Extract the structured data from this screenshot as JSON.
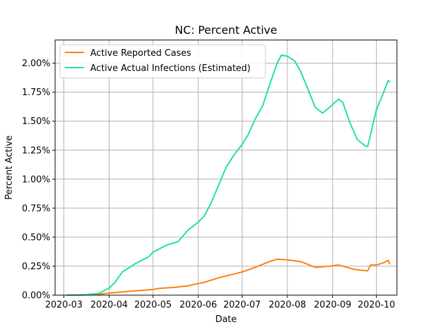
{
  "chart_data": {
    "type": "line",
    "title": "NC: Percent Active",
    "xlabel": "Date",
    "ylabel": "Percent Active",
    "xlim": [
      "2020-02-24",
      "2020-10-15"
    ],
    "ylim": [
      0,
      2.2
    ],
    "grid": true,
    "legend_position": "top-left",
    "x_ticks": [
      "2020-03-01",
      "2020-04-01",
      "2020-05-01",
      "2020-06-01",
      "2020-07-01",
      "2020-08-01",
      "2020-09-01",
      "2020-10-01"
    ],
    "x_tick_labels": [
      "2020-03",
      "2020-04",
      "2020-05",
      "2020-06",
      "2020-07",
      "2020-08",
      "2020-09",
      "2020-10"
    ],
    "y_ticks": [
      0,
      0.25,
      0.5,
      0.75,
      1.0,
      1.25,
      1.5,
      1.75,
      2.0
    ],
    "y_tick_labels": [
      "0.00%",
      "0.25%",
      "0.50%",
      "0.75%",
      "1.00%",
      "1.25%",
      "1.50%",
      "1.75%",
      "2.00%"
    ],
    "series": [
      {
        "name": "Active Reported Cases",
        "color": "#ff7f0e",
        "points": [
          [
            "2020-03-03",
            0.0
          ],
          [
            "2020-03-15",
            0.002
          ],
          [
            "2020-03-25",
            0.008
          ],
          [
            "2020-04-01",
            0.018
          ],
          [
            "2020-04-10",
            0.028
          ],
          [
            "2020-04-20",
            0.038
          ],
          [
            "2020-05-01",
            0.048
          ],
          [
            "2020-05-05",
            0.058
          ],
          [
            "2020-05-15",
            0.066
          ],
          [
            "2020-05-25",
            0.08
          ],
          [
            "2020-06-01",
            0.1
          ],
          [
            "2020-06-05",
            0.11
          ],
          [
            "2020-06-15",
            0.15
          ],
          [
            "2020-06-25",
            0.18
          ],
          [
            "2020-07-01",
            0.2
          ],
          [
            "2020-07-10",
            0.24
          ],
          [
            "2020-07-20",
            0.29
          ],
          [
            "2020-07-25",
            0.31
          ],
          [
            "2020-08-01",
            0.305
          ],
          [
            "2020-08-10",
            0.29
          ],
          [
            "2020-08-20",
            0.24
          ],
          [
            "2020-08-30",
            0.25
          ],
          [
            "2020-09-05",
            0.26
          ],
          [
            "2020-09-15",
            0.225
          ],
          [
            "2020-09-20",
            0.215
          ],
          [
            "2020-09-25",
            0.21
          ],
          [
            "2020-09-27",
            0.26
          ],
          [
            "2020-10-01",
            0.26
          ],
          [
            "2020-10-06",
            0.28
          ],
          [
            "2020-10-09",
            0.3
          ],
          [
            "2020-10-10",
            0.27
          ]
        ]
      },
      {
        "name": "Active Actual Infections (Estimated)",
        "color": "#1ee396",
        "points": [
          [
            "2020-03-03",
            0.0
          ],
          [
            "2020-03-15",
            0.003
          ],
          [
            "2020-03-25",
            0.015
          ],
          [
            "2020-04-01",
            0.06
          ],
          [
            "2020-04-05",
            0.11
          ],
          [
            "2020-04-10",
            0.2
          ],
          [
            "2020-04-15",
            0.24
          ],
          [
            "2020-04-20",
            0.28
          ],
          [
            "2020-04-28",
            0.33
          ],
          [
            "2020-05-01",
            0.37
          ],
          [
            "2020-05-10",
            0.43
          ],
          [
            "2020-05-18",
            0.46
          ],
          [
            "2020-05-25",
            0.56
          ],
          [
            "2020-06-01",
            0.63
          ],
          [
            "2020-06-05",
            0.68
          ],
          [
            "2020-06-10",
            0.8
          ],
          [
            "2020-06-15",
            0.95
          ],
          [
            "2020-06-20",
            1.1
          ],
          [
            "2020-06-25",
            1.2
          ],
          [
            "2020-07-01",
            1.3
          ],
          [
            "2020-07-05",
            1.38
          ],
          [
            "2020-07-10",
            1.52
          ],
          [
            "2020-07-15",
            1.63
          ],
          [
            "2020-07-20",
            1.82
          ],
          [
            "2020-07-25",
            2.0
          ],
          [
            "2020-07-28",
            2.07
          ],
          [
            "2020-08-01",
            2.06
          ],
          [
            "2020-08-06",
            2.02
          ],
          [
            "2020-08-10",
            1.93
          ],
          [
            "2020-08-15",
            1.78
          ],
          [
            "2020-08-20",
            1.62
          ],
          [
            "2020-08-25",
            1.57
          ],
          [
            "2020-08-30",
            1.62
          ],
          [
            "2020-09-05",
            1.69
          ],
          [
            "2020-09-08",
            1.66
          ],
          [
            "2020-09-13",
            1.48
          ],
          [
            "2020-09-18",
            1.34
          ],
          [
            "2020-09-23",
            1.29
          ],
          [
            "2020-09-25",
            1.28
          ],
          [
            "2020-10-01",
            1.6
          ],
          [
            "2020-10-05",
            1.72
          ],
          [
            "2020-10-09",
            1.85
          ],
          [
            "2020-10-10",
            1.84
          ]
        ]
      }
    ]
  }
}
